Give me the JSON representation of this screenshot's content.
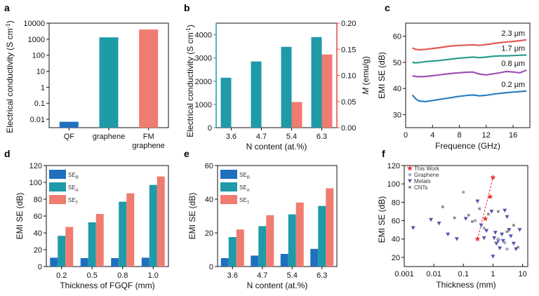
{
  "colors": {
    "blue": "#1f6fbf",
    "teal": "#1f9aa8",
    "salmon": "#f07b70",
    "red_axis": "#e8473f",
    "teal_axis": "#1f9aa8",
    "curve_red": "#e05a55",
    "curve_green": "#2a9c8c",
    "curve_purple": "#a052b4",
    "curve_blue": "#2c7fc2",
    "star": "#e82c2c",
    "graphene_pt": "#9aa8c8",
    "metals_pt": "#5555aa",
    "cnts_pt": "#8a8a8a"
  },
  "chart_data": [
    {
      "panel": "a",
      "type": "bar",
      "categories": [
        "QF",
        "graphene",
        "FM graphene"
      ],
      "category_lines": [
        [
          "QF"
        ],
        [
          "graphene"
        ],
        [
          "FM",
          "graphene"
        ]
      ],
      "values": [
        0.007,
        1300,
        4000
      ],
      "bar_colors": [
        "blue",
        "teal",
        "salmon"
      ],
      "yscale": "log",
      "ylim": [
        0.003,
        10000
      ],
      "yticks": [
        0.01,
        0.1,
        1,
        10,
        100,
        1000,
        10000
      ],
      "ytick_labels": [
        "0.01",
        "0.1",
        "1",
        "10",
        "100",
        "1000",
        "10000"
      ],
      "ylabel": "Electrical conductivity (S cm",
      "ylabel_sup": "-1",
      "ylabel_tail": ")",
      "xlabel": ""
    },
    {
      "panel": "b",
      "type": "bar",
      "categories": [
        "3.6",
        "4.7",
        "5.4",
        "6.3"
      ],
      "series": [
        {
          "name": "Electrical conductivity",
          "axis": "left",
          "values": [
            2150,
            2850,
            3480,
            3900
          ]
        },
        {
          "name": "M",
          "axis": "right",
          "values": [
            null,
            null,
            0.049,
            0.14
          ]
        }
      ],
      "ylim": [
        0,
        4500
      ],
      "yticks": [
        0,
        1000,
        2000,
        3000,
        4000
      ],
      "y2lim": [
        0,
        0.2
      ],
      "y2ticks": [
        0.0,
        0.05,
        0.1,
        0.15,
        0.2
      ],
      "y2tick_labels": [
        "0.00",
        "0.05",
        "0.10",
        "0.15",
        "0.20"
      ],
      "ylabel": "Electrical conductivity (S cm",
      "ylabel_sup": "-1",
      "ylabel_tail": ")",
      "y2label_italic": "M",
      "y2label_rest": " (emu/g)",
      "xlabel": "N content (at.%)"
    },
    {
      "panel": "c",
      "type": "line",
      "xlim": [
        0,
        18.5
      ],
      "xticks": [
        0,
        4,
        8,
        12,
        16
      ],
      "ylim": [
        25,
        65
      ],
      "yticks": [
        30,
        40,
        50,
        60
      ],
      "xlabel": "Frequence (GHz)",
      "ylabel": "EMI SE (dB)",
      "series": [
        {
          "name": "2.3 μm",
          "color": "curve_red",
          "x": [
            1,
            1.5,
            2,
            3,
            4,
            5,
            6,
            7,
            8,
            9,
            10,
            11,
            12,
            13,
            14,
            15,
            16,
            17,
            18
          ],
          "y": [
            55.5,
            55,
            54.8,
            55,
            55.3,
            55.6,
            56,
            56.3,
            56.5,
            56.6,
            56.7,
            56.5,
            56.8,
            57.2,
            57.5,
            57.8,
            58,
            58.3,
            58.6
          ]
        },
        {
          "name": "1.7 μm",
          "color": "curve_green",
          "x": [
            1,
            1.5,
            2,
            3,
            4,
            5,
            6,
            7,
            8,
            9,
            10,
            11,
            12,
            13,
            14,
            15,
            16,
            17,
            18
          ],
          "y": [
            50,
            49.8,
            49.9,
            50.3,
            50.5,
            50.7,
            51,
            51.3,
            51.6,
            51.8,
            52,
            51.8,
            52,
            52.3,
            52.5,
            52.5,
            52.6,
            52.7,
            52.8
          ]
        },
        {
          "name": "0.8 μm",
          "color": "curve_purple",
          "x": [
            1,
            1.5,
            2,
            3,
            4,
            5,
            6,
            7,
            8,
            9,
            10,
            11,
            12,
            13,
            14,
            15,
            16,
            17,
            18
          ],
          "y": [
            44.8,
            44.6,
            44.5,
            44.6,
            44.9,
            45.2,
            45.5,
            45.8,
            46,
            46.2,
            46.3,
            45.5,
            45.2,
            45.6,
            46,
            46.5,
            46.3,
            46,
            47
          ]
        },
        {
          "name": "0.2 μm",
          "color": "curve_blue",
          "x": [
            1,
            1.5,
            2,
            3,
            4,
            5,
            6,
            7,
            8,
            9,
            10,
            11,
            12,
            13,
            14,
            15,
            16,
            17,
            18
          ],
          "y": [
            37.5,
            36,
            35.2,
            35,
            35.4,
            35.8,
            36.2,
            36.6,
            37,
            37.3,
            37.5,
            37.2,
            37.4,
            37.8,
            38.1,
            38.4,
            38.6,
            38.8,
            39
          ]
        }
      ]
    },
    {
      "panel": "d",
      "type": "bar",
      "categories": [
        "0.2",
        "0.5",
        "0.8",
        "1.0"
      ],
      "series": [
        {
          "name": "SE",
          "sub": "R",
          "color": "blue",
          "values": [
            10.5,
            10,
            10,
            10.5
          ]
        },
        {
          "name": "SE",
          "sub": "A",
          "color": "teal",
          "values": [
            36.5,
            52.5,
            77,
            97
          ]
        },
        {
          "name": "SE",
          "sub": "T",
          "color": "salmon",
          "values": [
            47,
            62.5,
            87,
            107
          ]
        }
      ],
      "ylim": [
        0,
        120
      ],
      "yticks": [
        0,
        20,
        40,
        60,
        80,
        100,
        120
      ],
      "ylabel": "EMI SE (dB)",
      "xlabel": "Thickness of FGQF (mm)"
    },
    {
      "panel": "e",
      "type": "bar",
      "categories": [
        "3.6",
        "4.7",
        "5.4",
        "6.3"
      ],
      "series": [
        {
          "name": "SE",
          "sub": "R",
          "color": "blue",
          "values": [
            5,
            6.5,
            7.5,
            10.5
          ]
        },
        {
          "name": "SE",
          "sub": "A",
          "color": "teal",
          "values": [
            17.5,
            24,
            31,
            36
          ]
        },
        {
          "name": "SE",
          "sub": "T",
          "color": "salmon",
          "values": [
            22,
            30.5,
            38,
            46.5
          ]
        }
      ],
      "ylim": [
        0,
        60
      ],
      "yticks": [
        0,
        20,
        40,
        60
      ],
      "ylabel": "EMI SE (dB)",
      "xlabel": "N content (at.%)"
    },
    {
      "panel": "f",
      "type": "scatter",
      "xscale": "log",
      "xlim": [
        0.001,
        15
      ],
      "xticks": [
        0.001,
        0.01,
        0.1,
        1,
        10
      ],
      "xtick_labels": [
        "0.001",
        "0.01",
        "0.1",
        "1",
        "10"
      ],
      "ylim": [
        10,
        120
      ],
      "yticks": [
        20,
        40,
        60,
        80,
        100,
        120
      ],
      "xlabel": "Thickness (mm)",
      "ylabel": "EMI SE (dB)",
      "series": [
        {
          "name": "This Work",
          "marker": "star",
          "color": "star",
          "x": [
            0.3,
            0.55,
            0.8,
            1.0
          ],
          "y": [
            40,
            62,
            86,
            107
          ]
        },
        {
          "name": "Graphene",
          "marker": "dot",
          "color": "graphene_pt",
          "x": [
            0.1,
            0.25,
            0.5,
            1.5,
            2.5,
            3
          ],
          "y": [
            91,
            60,
            52,
            40,
            36,
            29
          ]
        },
        {
          "name": "Metals",
          "marker": "tri",
          "color": "metals_pt",
          "x": [
            0.002,
            0.008,
            0.015,
            0.03,
            0.06,
            0.12,
            0.3,
            0.4,
            0.6,
            0.9,
            1.1,
            1.2,
            1.3,
            1.5,
            1.7,
            2.0,
            2.2,
            2.5,
            3.0,
            3.5,
            4.0,
            5.0,
            6.0,
            8.0,
            1.0,
            0.5
          ],
          "y": [
            52,
            61,
            57,
            45,
            40,
            62,
            81,
            55,
            49,
            70,
            41,
            47,
            35,
            38,
            30,
            45,
            38,
            71,
            64,
            50,
            43,
            35,
            29,
            50,
            21,
            41
          ]
        },
        {
          "name": "CNTs",
          "marker": "sq",
          "color": "cnts_pt",
          "x": [
            0.02,
            0.05,
            0.15,
            0.2,
            0.35,
            0.7,
            1.5,
            3,
            5,
            7
          ],
          "y": [
            75,
            63,
            66,
            59,
            73,
            67,
            70,
            48,
            55,
            31
          ]
        }
      ],
      "trend_line": {
        "x": [
          0.3,
          1.0
        ],
        "y": [
          40,
          107
        ]
      }
    }
  ]
}
